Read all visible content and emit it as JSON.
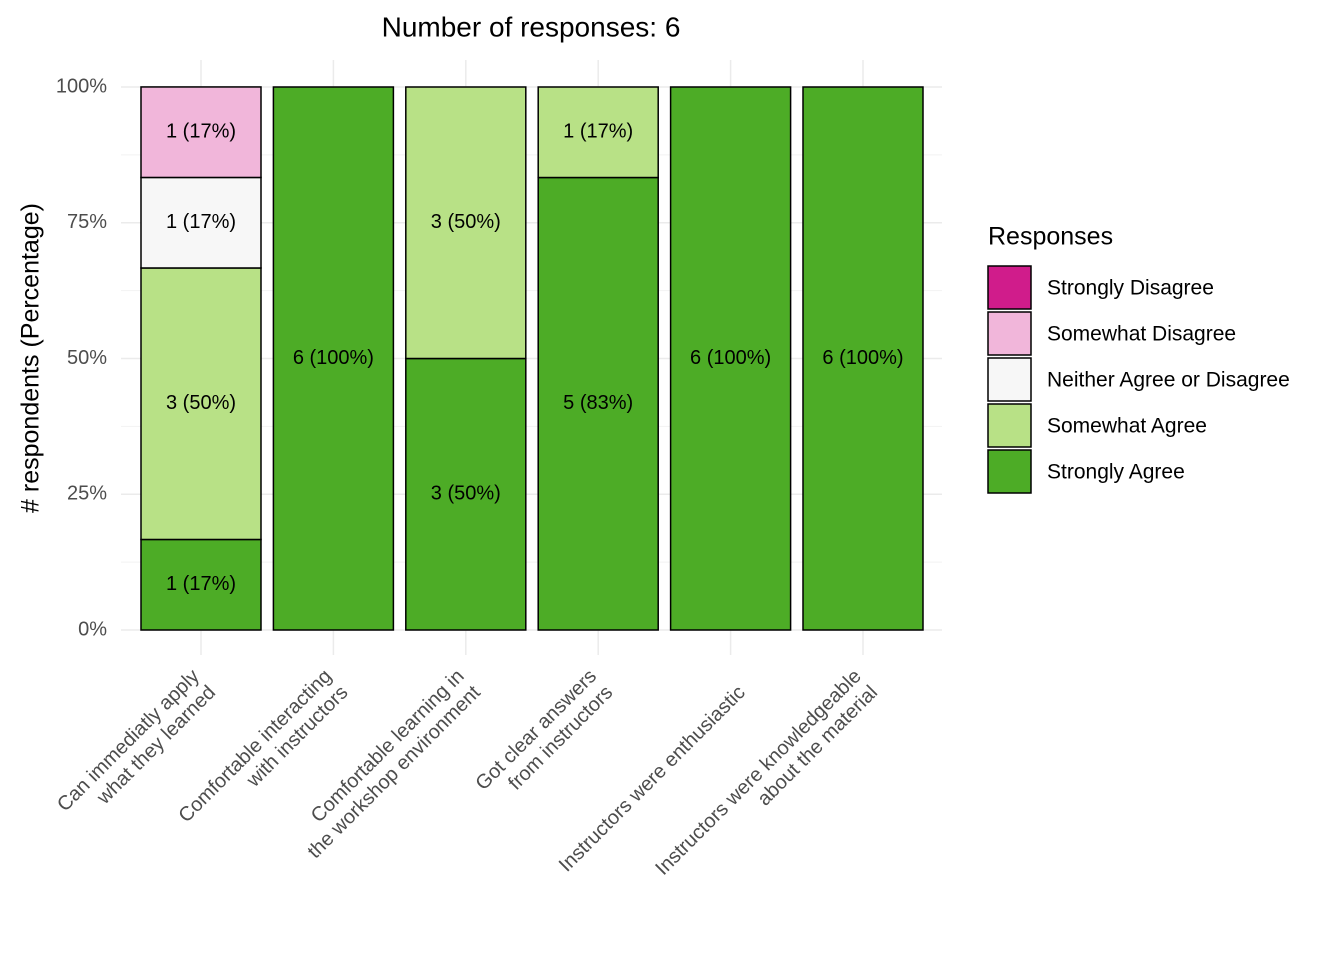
{
  "chart_data": {
    "type": "stacked_bar",
    "title": "Number of responses: 6",
    "y_label": "# respondents (Percentage)",
    "legend_title": "Responses",
    "legend_position": "right",
    "grid": true,
    "categories": [
      "Can immediatly apply\nwhat they learned",
      "Comfortable interacting\nwith instructors",
      "Comfortable learning in\nthe workshop environment",
      "Got clear answers\nfrom instructors",
      "Instructors were enthusiastic",
      "Instructors were knowledgeable\nabout the material"
    ],
    "ylim": [
      0,
      100
    ],
    "yticks": [
      {
        "value": 0,
        "label": "0%"
      },
      {
        "value": 25,
        "label": "25%"
      },
      {
        "value": 50,
        "label": "50%"
      },
      {
        "value": 75,
        "label": "75%"
      },
      {
        "value": 100,
        "label": "100%"
      }
    ],
    "series": [
      {
        "name": "Strongly Disagree",
        "color": "#d01c8b",
        "values": [
          0,
          0,
          0,
          0,
          0,
          0
        ],
        "value_labels": [
          null,
          null,
          null,
          null,
          null,
          null
        ]
      },
      {
        "name": "Somewhat Disagree",
        "color": "#f1b6da",
        "values": [
          16.67,
          0,
          0,
          0,
          0,
          0
        ],
        "value_labels": [
          "1 (17%)",
          null,
          null,
          null,
          null,
          null
        ]
      },
      {
        "name": "Neither Agree or Disagree",
        "color": "#f7f7f7",
        "values": [
          16.67,
          0,
          0,
          0,
          0,
          0
        ],
        "value_labels": [
          "1 (17%)",
          null,
          null,
          null,
          null,
          null
        ]
      },
      {
        "name": "Somewhat Agree",
        "color": "#b8e186",
        "values": [
          50,
          0,
          50,
          16.67,
          0,
          0
        ],
        "value_labels": [
          "3 (50%)",
          null,
          "3 (50%)",
          "1 (17%)",
          null,
          null
        ]
      },
      {
        "name": "Strongly Agree",
        "color": "#4dac26",
        "values": [
          16.67,
          100,
          50,
          83.33,
          100,
          100
        ],
        "value_labels": [
          "1 (17%)",
          "6 (100%)",
          "3 (50%)",
          "5 (83%)",
          "6 (100%)",
          "6 (100%)"
        ]
      }
    ]
  }
}
